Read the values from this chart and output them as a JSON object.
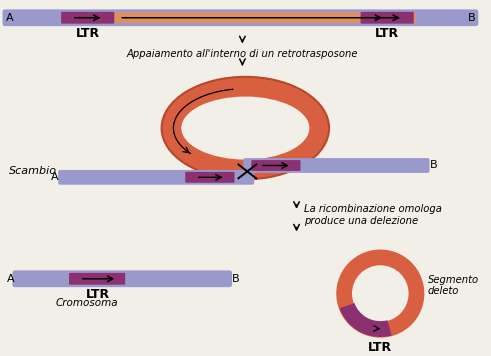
{
  "bg_color": "#f2efe9",
  "ltr_color": "#8B3070",
  "chromosome_color": "#9999cc",
  "retro_body_color": "#e09060",
  "loop_color": "#d86040",
  "loop_light": "#f0a880",
  "arrow_color": "#000000",
  "text_appaiamento": "Appaiamento all'interno di un retrotrasposone",
  "text_scambio": "Scambio",
  "text_ricombinazione": "La ricombinazione omologa\nproduce una delezione",
  "text_cromosoma": "Cromosoma",
  "text_segmento": "Segmento\ndeleto",
  "figw": 4.91,
  "figh": 3.56,
  "dpi": 100
}
